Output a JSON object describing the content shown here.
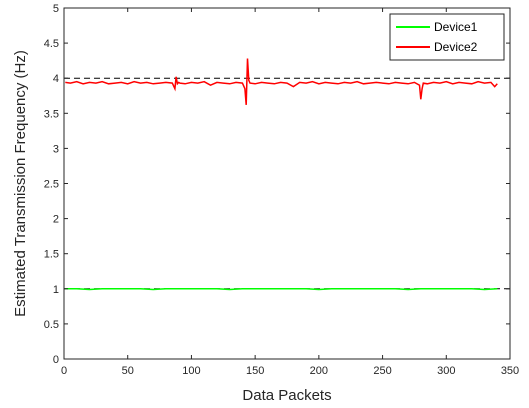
{
  "chart_data": {
    "type": "line",
    "title": "",
    "xlabel": "Data Packets",
    "ylabel": "Estimated Transmission Frequency (Hz)",
    "xlim": [
      0,
      350
    ],
    "ylim": [
      0,
      5
    ],
    "xticks": [
      0,
      50,
      100,
      150,
      200,
      250,
      300,
      350
    ],
    "yticks": [
      0,
      0.5,
      1,
      1.5,
      2,
      2.5,
      3,
      3.5,
      4,
      4.5,
      5
    ],
    "xtick_labels": [
      "0",
      "50",
      "100",
      "150",
      "200",
      "250",
      "300",
      "350"
    ],
    "ytick_labels": [
      "0",
      "0.5",
      "1",
      "1.5",
      "2",
      "2.5",
      "3",
      "3.5",
      "4",
      "4.5",
      "5"
    ],
    "grid": false,
    "legend_position": "top-right",
    "reference_lines": [
      {
        "y": 1,
        "style": "dashed",
        "color": "#000000"
      },
      {
        "y": 4,
        "style": "dashed",
        "color": "#000000"
      }
    ],
    "series": [
      {
        "name": "Device1",
        "color": "#00ff00",
        "x": [
          1,
          10,
          20,
          30,
          40,
          50,
          60,
          70,
          80,
          90,
          100,
          110,
          120,
          130,
          140,
          150,
          160,
          170,
          180,
          190,
          200,
          210,
          220,
          230,
          240,
          250,
          260,
          270,
          280,
          290,
          300,
          310,
          320,
          330,
          340
        ],
        "values": [
          1.0,
          1.0,
          0.99,
          1.0,
          1.0,
          1.0,
          1.0,
          0.99,
          1.0,
          1.0,
          1.0,
          1.0,
          1.0,
          0.99,
          1.0,
          1.0,
          1.0,
          1.0,
          1.0,
          1.0,
          0.99,
          1.0,
          1.0,
          1.0,
          1.0,
          1.0,
          1.0,
          0.99,
          1.0,
          1.0,
          1.0,
          1.0,
          1.0,
          0.99,
          1.0
        ]
      },
      {
        "name": "Device2",
        "color": "#ff0000",
        "x": [
          1,
          5,
          10,
          15,
          20,
          25,
          30,
          35,
          40,
          45,
          50,
          55,
          60,
          65,
          70,
          75,
          80,
          85,
          87,
          88,
          89,
          90,
          91,
          95,
          100,
          105,
          110,
          115,
          120,
          125,
          130,
          135,
          140,
          142,
          143,
          144,
          145,
          146,
          150,
          155,
          160,
          165,
          170,
          175,
          180,
          185,
          190,
          195,
          200,
          205,
          210,
          215,
          220,
          225,
          230,
          235,
          240,
          245,
          250,
          255,
          260,
          265,
          270,
          275,
          279,
          280,
          281,
          282,
          285,
          290,
          295,
          300,
          305,
          310,
          315,
          320,
          325,
          330,
          335,
          338,
          340
        ],
        "values": [
          3.94,
          3.93,
          3.95,
          3.92,
          3.94,
          3.93,
          3.95,
          3.92,
          3.93,
          3.94,
          3.92,
          3.95,
          3.93,
          3.94,
          3.92,
          3.93,
          3.94,
          3.93,
          3.85,
          4.02,
          3.92,
          3.94,
          3.93,
          3.92,
          3.94,
          3.93,
          3.95,
          3.9,
          3.94,
          3.93,
          3.92,
          3.94,
          3.93,
          3.85,
          3.62,
          4.28,
          3.97,
          3.93,
          3.92,
          3.94,
          3.93,
          3.92,
          3.94,
          3.93,
          3.88,
          3.94,
          3.93,
          3.95,
          3.92,
          3.94,
          3.93,
          3.92,
          3.94,
          3.93,
          3.95,
          3.92,
          3.93,
          3.94,
          3.93,
          3.92,
          3.94,
          3.93,
          3.92,
          3.94,
          3.9,
          3.7,
          3.85,
          3.93,
          3.92,
          3.94,
          3.93,
          3.95,
          3.92,
          3.94,
          3.93,
          3.92,
          3.95,
          3.93,
          3.94,
          3.88,
          3.92
        ]
      }
    ]
  }
}
